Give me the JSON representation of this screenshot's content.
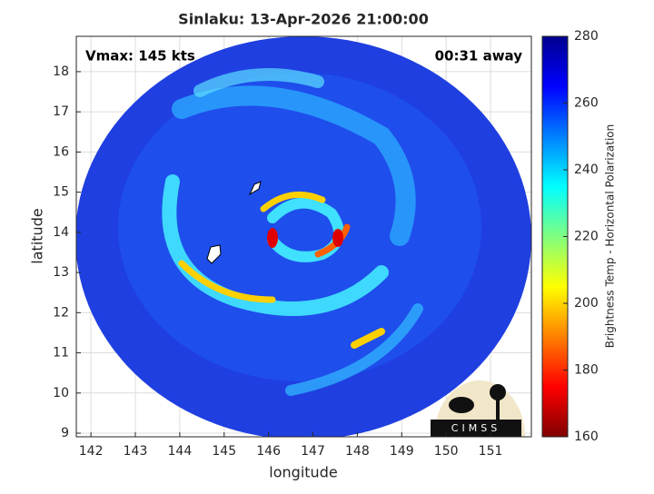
{
  "chart_data": {
    "type": "image-map",
    "title": "Sinlaku: 13-Apr-2026 21:00:00",
    "annotations": [
      "Vmax: 145 kts",
      "00:31 away"
    ],
    "x_label": "longitude",
    "y_label": "latitude",
    "xlim": [
      141.67,
      151.92
    ],
    "xticks": [
      142,
      143,
      144,
      145,
      146,
      147,
      148,
      149,
      150,
      151
    ],
    "ylim": [
      8.91,
      18.88
    ],
    "yticks": [
      9,
      10,
      11,
      12,
      13,
      14,
      15,
      16,
      17,
      18
    ],
    "grid": true,
    "colorbar": {
      "label": "Brightness Temp - Horizontal Polarization",
      "clim": [
        160,
        280
      ],
      "ticks": [
        160,
        180,
        200,
        220,
        240,
        260,
        280
      ],
      "colormap": [
        "#800000",
        "#ff0000",
        "#ff8000",
        "#ffff00",
        "#80ff80",
        "#00ffff",
        "#0080ff",
        "#0000ff",
        "#00008f"
      ]
    },
    "logo": "CIMSS"
  }
}
